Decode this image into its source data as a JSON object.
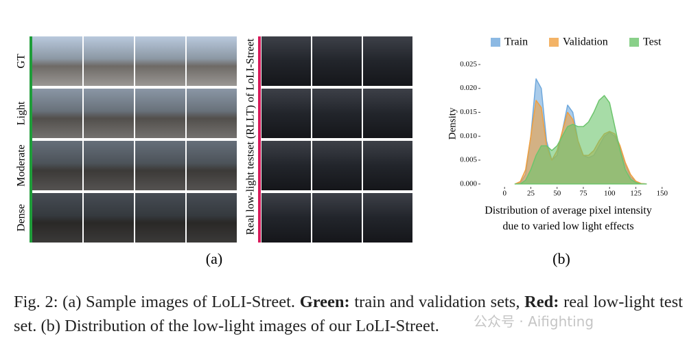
{
  "panel_a": {
    "row_labels": [
      "GT",
      "Light",
      "Moderate",
      "Dense"
    ],
    "rllt_label": "Real low-light testset (RLLT) of LoLI-Street",
    "caption": "(a)"
  },
  "chart_data": {
    "type": "area",
    "y_label": "Density",
    "x_label": [
      "Distribution of average pixel intensity",
      "due to varied low light effects"
    ],
    "caption": "(b)",
    "x": [
      10,
      15,
      20,
      25,
      30,
      35,
      40,
      45,
      50,
      55,
      60,
      65,
      70,
      75,
      80,
      85,
      90,
      95,
      100,
      105,
      110,
      115,
      120,
      125,
      130,
      135
    ],
    "series": [
      {
        "name": "Train",
        "color": "#6fa8dc",
        "values": [
          0,
          0.0002,
          0.002,
          0.01,
          0.022,
          0.02,
          0.009,
          0.005,
          0.006,
          0.011,
          0.0165,
          0.015,
          0.009,
          0.006,
          0.0055,
          0.006,
          0.008,
          0.01,
          0.0108,
          0.01,
          0.0075,
          0.004,
          0.0015,
          0.0005,
          0.0001,
          0
        ]
      },
      {
        "name": "Validation",
        "color": "#f0a040",
        "values": [
          0,
          0.0005,
          0.003,
          0.01,
          0.0175,
          0.016,
          0.008,
          0.005,
          0.007,
          0.011,
          0.015,
          0.0135,
          0.009,
          0.006,
          0.006,
          0.007,
          0.009,
          0.0105,
          0.011,
          0.0105,
          0.008,
          0.0045,
          0.002,
          0.0006,
          0.0001,
          0
        ]
      },
      {
        "name": "Test",
        "color": "#6cc46c",
        "values": [
          0,
          0,
          0.0008,
          0.003,
          0.006,
          0.008,
          0.008,
          0.007,
          0.008,
          0.01,
          0.012,
          0.0125,
          0.012,
          0.012,
          0.013,
          0.015,
          0.0175,
          0.0185,
          0.017,
          0.012,
          0.007,
          0.003,
          0.001,
          0.0003,
          0,
          0
        ]
      }
    ],
    "xlim": [
      -23,
      160
    ],
    "ylim": [
      -0.0006,
      0.027
    ],
    "xticks": [
      0,
      25,
      50,
      75,
      100,
      125,
      150
    ],
    "yticks": [
      {
        "value": 0,
        "label": "0.000"
      },
      {
        "value": 0.005,
        "label": "0.005"
      },
      {
        "value": 0.01,
        "label": "0.010"
      },
      {
        "value": 0.015,
        "label": "0.015"
      },
      {
        "value": 0.02,
        "label": "0.020"
      },
      {
        "value": 0.025,
        "label": "0.025"
      }
    ]
  },
  "figure_caption": [
    "Fig. 2: (a) Sample images of LoLI-Street. ",
    "Green:",
    " train and validation sets, ",
    "Red:",
    " real low-light test set. (b) Distribution of the low-light images of our LoLI-Street."
  ],
  "watermark": "公众号 · Aifighting"
}
